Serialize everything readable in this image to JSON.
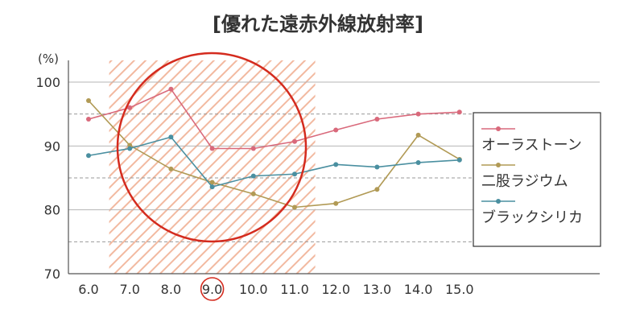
{
  "chart_data": {
    "type": "line",
    "title": "[優れた遠赤外線放射率]",
    "y_unit": "(%)",
    "x": [
      "6.0",
      "7.0",
      "8.0",
      "9.0",
      "10.0",
      "11.0",
      "12.0",
      "13.0",
      "14.0",
      "15.0"
    ],
    "highlighted_x": "9.0",
    "highlight_band": [
      6.5,
      11.5
    ],
    "ylim": [
      70,
      104
    ],
    "yticks": [
      70,
      80,
      90,
      100
    ],
    "dashed_gridlines": [
      75,
      85,
      95
    ],
    "legend_position": "right",
    "series": [
      {
        "name": "オーラストーン",
        "color": "#d9697b",
        "values": [
          94.2,
          96.0,
          98.9,
          89.6,
          89.6,
          90.7,
          92.5,
          94.2,
          95.0,
          95.3
        ]
      },
      {
        "name": "二股ラジウム",
        "color": "#b19a55",
        "values": [
          97.1,
          90.1,
          86.4,
          84.3,
          82.5,
          80.4,
          81.0,
          83.2,
          91.7,
          87.9
        ]
      },
      {
        "name": "ブラックシリカ",
        "color": "#4a8fa0",
        "values": [
          88.5,
          89.6,
          91.4,
          83.6,
          85.3,
          85.6,
          87.1,
          86.7,
          87.4,
          87.8
        ]
      }
    ]
  }
}
